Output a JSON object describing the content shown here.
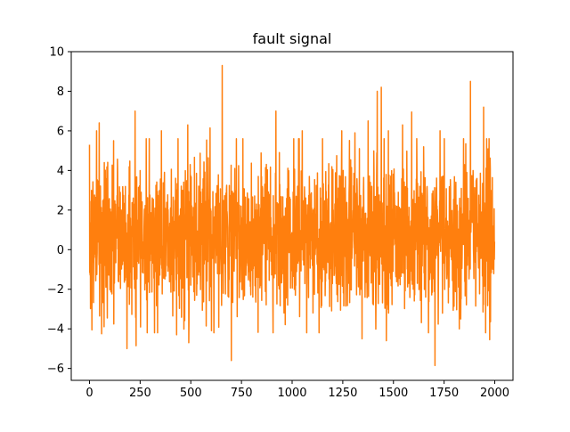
{
  "chart_data": {
    "type": "line",
    "title": "fault signal",
    "xlabel": "",
    "ylabel": "",
    "xlim": [
      -90,
      2090
    ],
    "ylim": [
      -6.6,
      10
    ],
    "x_ticks": [
      0,
      250,
      500,
      750,
      1000,
      1250,
      1500,
      1750,
      2000
    ],
    "y_ticks": [
      -6,
      -4,
      -2,
      0,
      2,
      4,
      6,
      8,
      10
    ],
    "grid": false,
    "legend": "none",
    "series": [
      {
        "name": "",
        "color": "#ff7f0e",
        "n_points": 2000,
        "mean": 0.7,
        "std": 1.9,
        "y_max": 9.3,
        "y_min": -5.85,
        "notable_points": [
          {
            "x": 0,
            "y": 5.3
          },
          {
            "x": 12,
            "y": -4.05
          },
          {
            "x": 35,
            "y": 6.0
          },
          {
            "x": 48,
            "y": 6.4
          },
          {
            "x": 60,
            "y": -4.25
          },
          {
            "x": 185,
            "y": -5.0
          },
          {
            "x": 225,
            "y": 7.0
          },
          {
            "x": 230,
            "y": -4.85
          },
          {
            "x": 355,
            "y": 6.0
          },
          {
            "x": 430,
            "y": -4.3
          },
          {
            "x": 485,
            "y": 6.3
          },
          {
            "x": 490,
            "y": -4.7
          },
          {
            "x": 595,
            "y": 6.15
          },
          {
            "x": 655,
            "y": 9.3
          },
          {
            "x": 700,
            "y": -5.6
          },
          {
            "x": 920,
            "y": 7.0
          },
          {
            "x": 1050,
            "y": 6.0
          },
          {
            "x": 1245,
            "y": 6.0
          },
          {
            "x": 1310,
            "y": 5.9
          },
          {
            "x": 1345,
            "y": -4.5
          },
          {
            "x": 1375,
            "y": 6.5
          },
          {
            "x": 1420,
            "y": 8.0
          },
          {
            "x": 1440,
            "y": 8.2
          },
          {
            "x": 1465,
            "y": -4.6
          },
          {
            "x": 1475,
            "y": 6.0
          },
          {
            "x": 1545,
            "y": 6.3
          },
          {
            "x": 1590,
            "y": 6.95
          },
          {
            "x": 1705,
            "y": -5.85
          },
          {
            "x": 1730,
            "y": 6.0
          },
          {
            "x": 1825,
            "y": -4.0
          },
          {
            "x": 1880,
            "y": 8.5
          },
          {
            "x": 1945,
            "y": 7.2
          },
          {
            "x": 1975,
            "y": -4.55
          },
          {
            "x": 1999,
            "y": 0.4
          }
        ]
      }
    ]
  }
}
